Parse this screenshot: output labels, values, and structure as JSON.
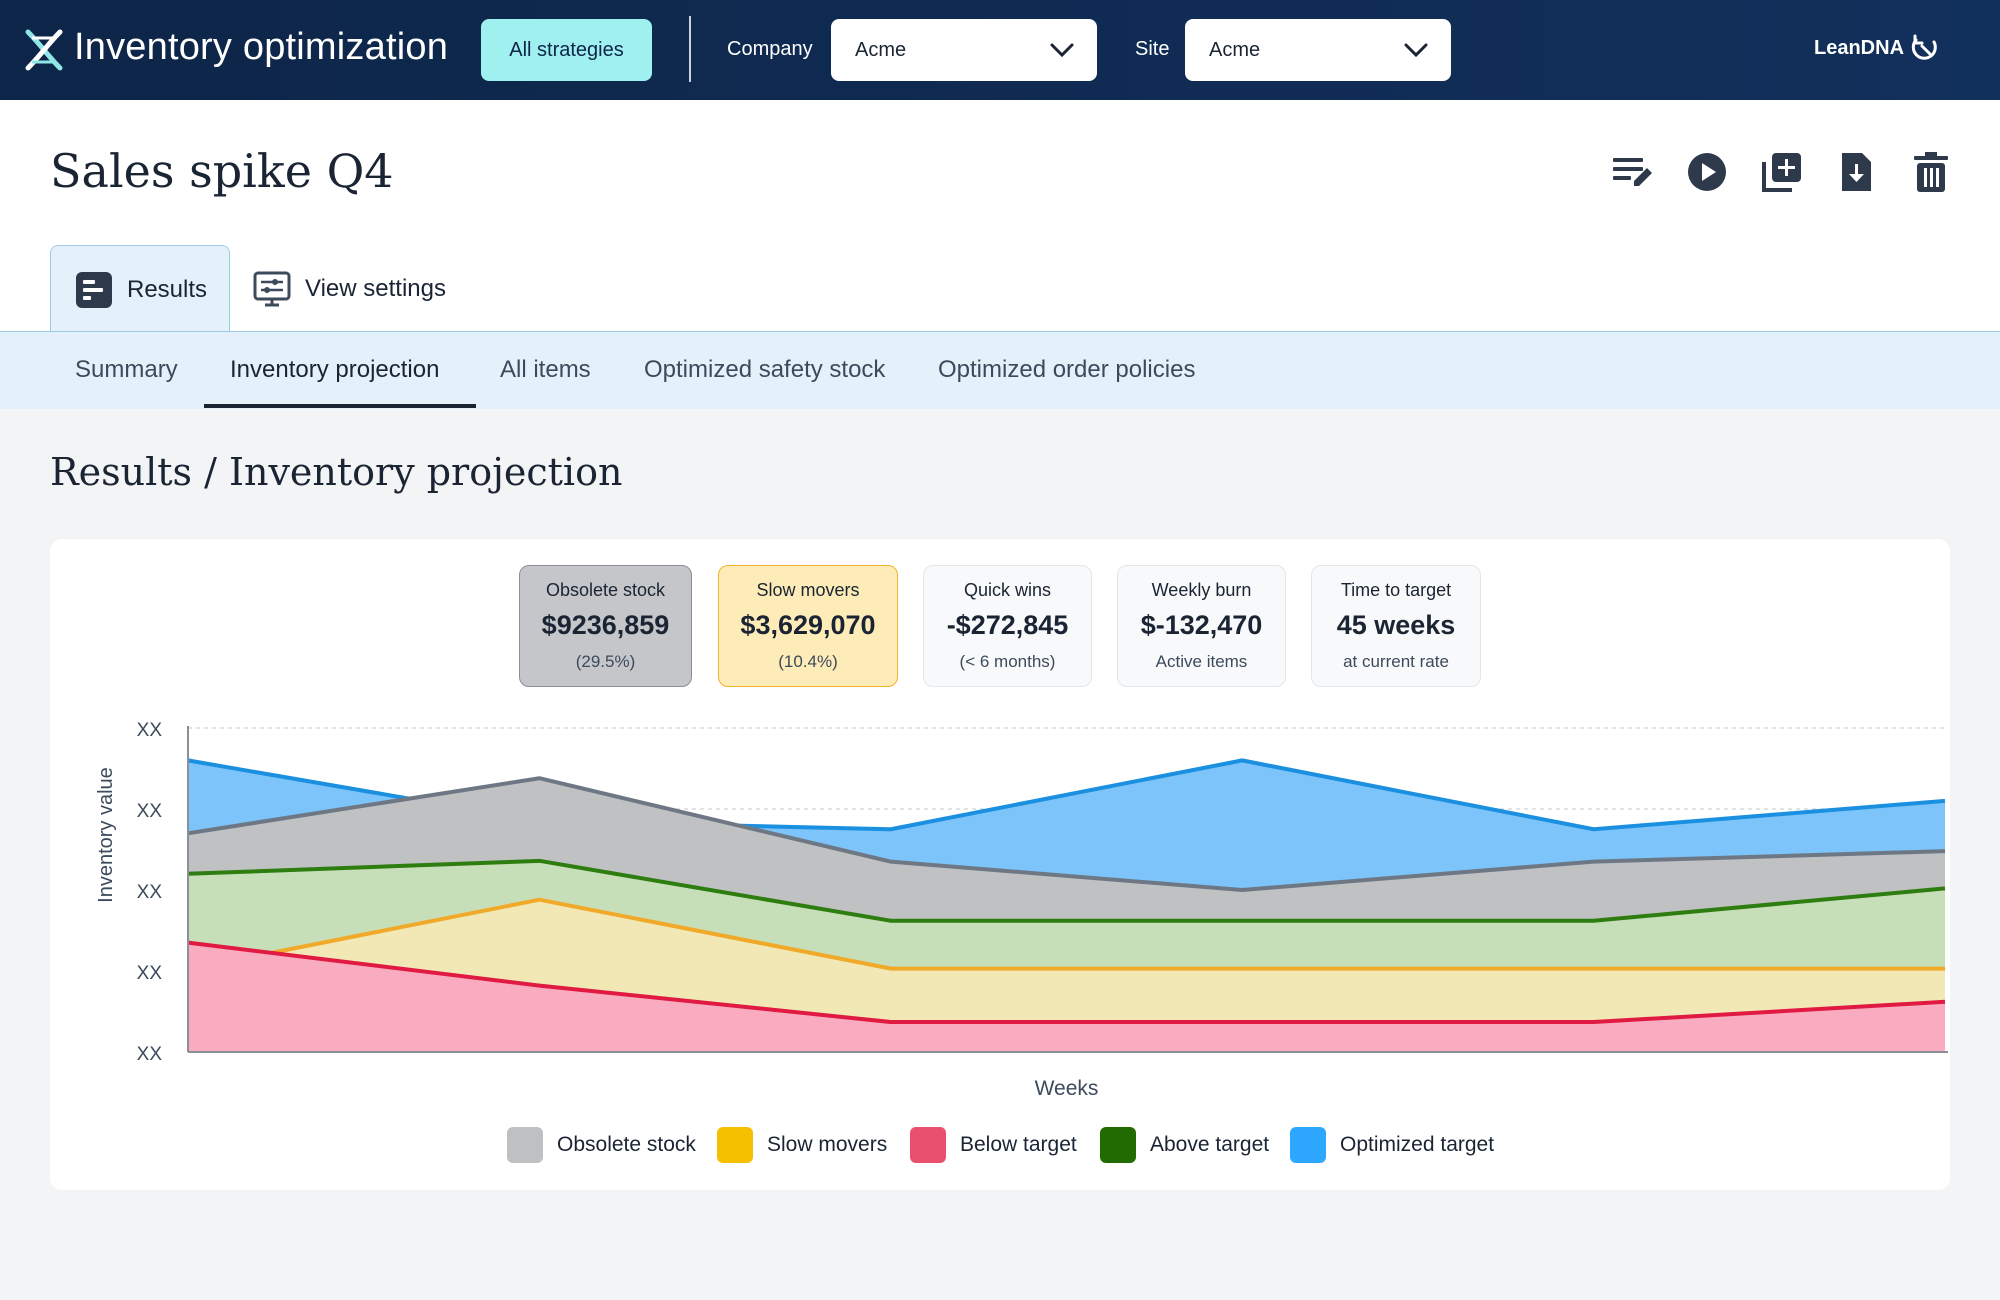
{
  "app": {
    "title": "Inventory optimization",
    "all_strategies_label": "All strategies",
    "company_label": "Company",
    "company_value": "Acme",
    "site_label": "Site",
    "site_value": "Acme",
    "brand": "LeanDNA"
  },
  "page": {
    "title": "Sales spike Q4",
    "actions": [
      "edit-icon",
      "play-icon",
      "duplicate-icon",
      "download-icon",
      "delete-icon"
    ]
  },
  "tabs": [
    {
      "label": "Results",
      "icon": "results-icon",
      "active": true
    },
    {
      "label": "View settings",
      "icon": "view-settings-icon",
      "active": false
    }
  ],
  "subtabs": [
    {
      "label": "Summary"
    },
    {
      "label": "Inventory projection"
    },
    {
      "label": "All items"
    },
    {
      "label": "Optimized safety stock"
    },
    {
      "label": "Optimized order policies"
    }
  ],
  "section_title": "Results / Inventory projection",
  "stats": [
    {
      "label": "Obsolete stock",
      "value": "$9236,859",
      "sub": "(29.5%)"
    },
    {
      "label": "Slow movers",
      "value": "$3,629,070",
      "sub": "(10.4%)"
    },
    {
      "label": "Quick wins",
      "value": "-$272,845",
      "sub": "(< 6 months)"
    },
    {
      "label": "Weekly burn",
      "value": "$-132,470",
      "sub": "Active items"
    },
    {
      "label": "Time to target",
      "value": "45 weeks",
      "sub": "at current rate"
    }
  ],
  "colors": {
    "topbar": "#0d2548",
    "accent_button": "#9ff0ee",
    "obsolete": "#bfc0c2",
    "slow": "#f5c000",
    "below": "#e8506e",
    "above": "#226b00",
    "optimized": "#2ea8ff"
  },
  "chart_data": {
    "type": "area",
    "xlabel": "Weeks",
    "ylabel": "Inventory value",
    "y_tick_labels": [
      "XX",
      "XX",
      "XX",
      "XX",
      "XX"
    ],
    "ylim": [
      0,
      4
    ],
    "x": [
      0,
      1,
      2,
      3,
      4,
      5
    ],
    "series": [
      {
        "name": "Below target",
        "values": [
          1.35,
          0.82,
          0.37,
          0.37,
          0.37,
          0.62
        ]
      },
      {
        "name": "Slow movers",
        "values": [
          1.02,
          1.88,
          1.03,
          1.03,
          1.03,
          1.03
        ]
      },
      {
        "name": "Above target",
        "values": [
          2.2,
          2.36,
          1.62,
          1.62,
          1.62,
          2.02
        ]
      },
      {
        "name": "Obsolete stock",
        "values": [
          2.7,
          3.38,
          2.35,
          2.0,
          2.35,
          2.48
        ]
      },
      {
        "name": "Optimized target",
        "values": [
          3.6,
          2.85,
          2.75,
          3.6,
          2.75,
          3.1
        ]
      }
    ],
    "legend": [
      "Obsolete stock",
      "Slow movers",
      "Below target",
      "Above target",
      "Optimized target"
    ],
    "grid": "dashed"
  }
}
